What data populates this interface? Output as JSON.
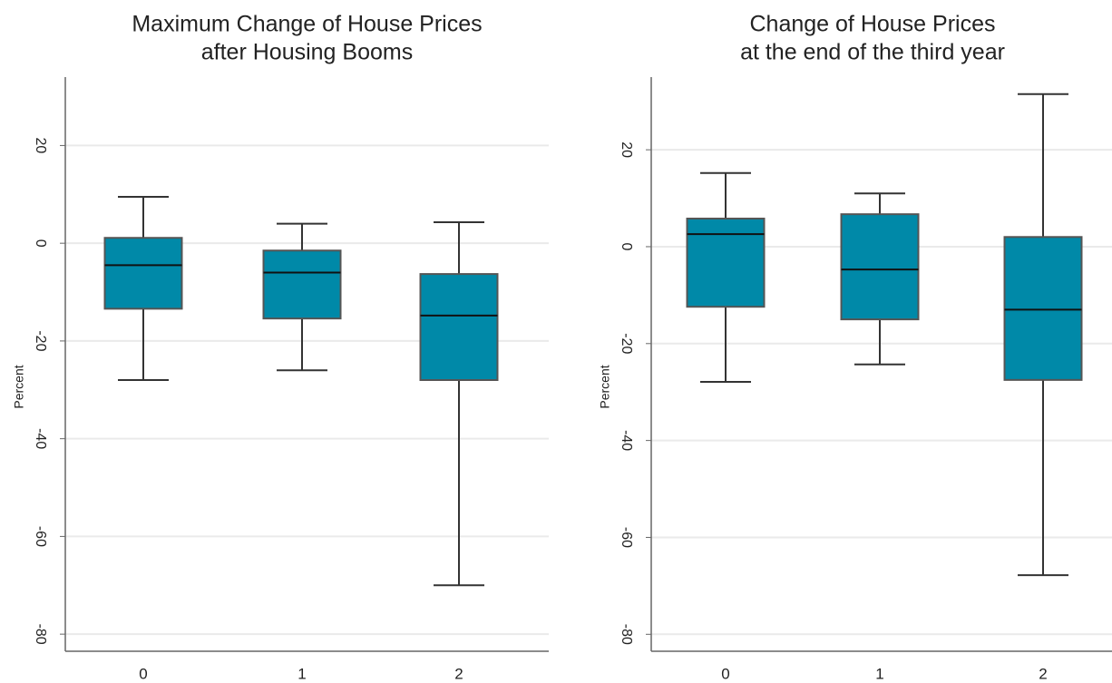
{
  "chart_data": [
    {
      "type": "box",
      "title": [
        "Maximum Change of House Prices",
        "after Housing Booms"
      ],
      "ylabel": "Percent",
      "categories": [
        "0",
        "1",
        "2"
      ],
      "min": [
        -28,
        -26,
        -70
      ],
      "q1": [
        -13.4,
        -15.4,
        -28
      ],
      "median": [
        -4.5,
        -6,
        -14.8
      ],
      "q3": [
        1.1,
        -1.5,
        -6.3
      ],
      "max": [
        9.5,
        4,
        4.3
      ],
      "color": "#0089a8",
      "ylim": [
        -83.5,
        34
      ],
      "yticks": [
        20,
        0,
        -20,
        -40,
        -60,
        -80
      ],
      "grid": true
    },
    {
      "type": "box",
      "title": [
        "Change of House Prices",
        "at the end of the third year"
      ],
      "ylabel": "Percent",
      "categories": [
        "0",
        "1",
        "2"
      ],
      "min": [
        -27.9,
        -24.3,
        -67.8
      ],
      "q1": [
        -12.4,
        -15,
        -27.5
      ],
      "median": [
        2.6,
        -4.7,
        -13
      ],
      "q3": [
        5.8,
        6.7,
        2
      ],
      "max": [
        15.2,
        11,
        31.5
      ],
      "color": "#0089a8",
      "ylim": [
        -83.5,
        35
      ],
      "yticks": [
        20,
        0,
        -20,
        -40,
        -60,
        -80
      ],
      "grid": true
    }
  ]
}
